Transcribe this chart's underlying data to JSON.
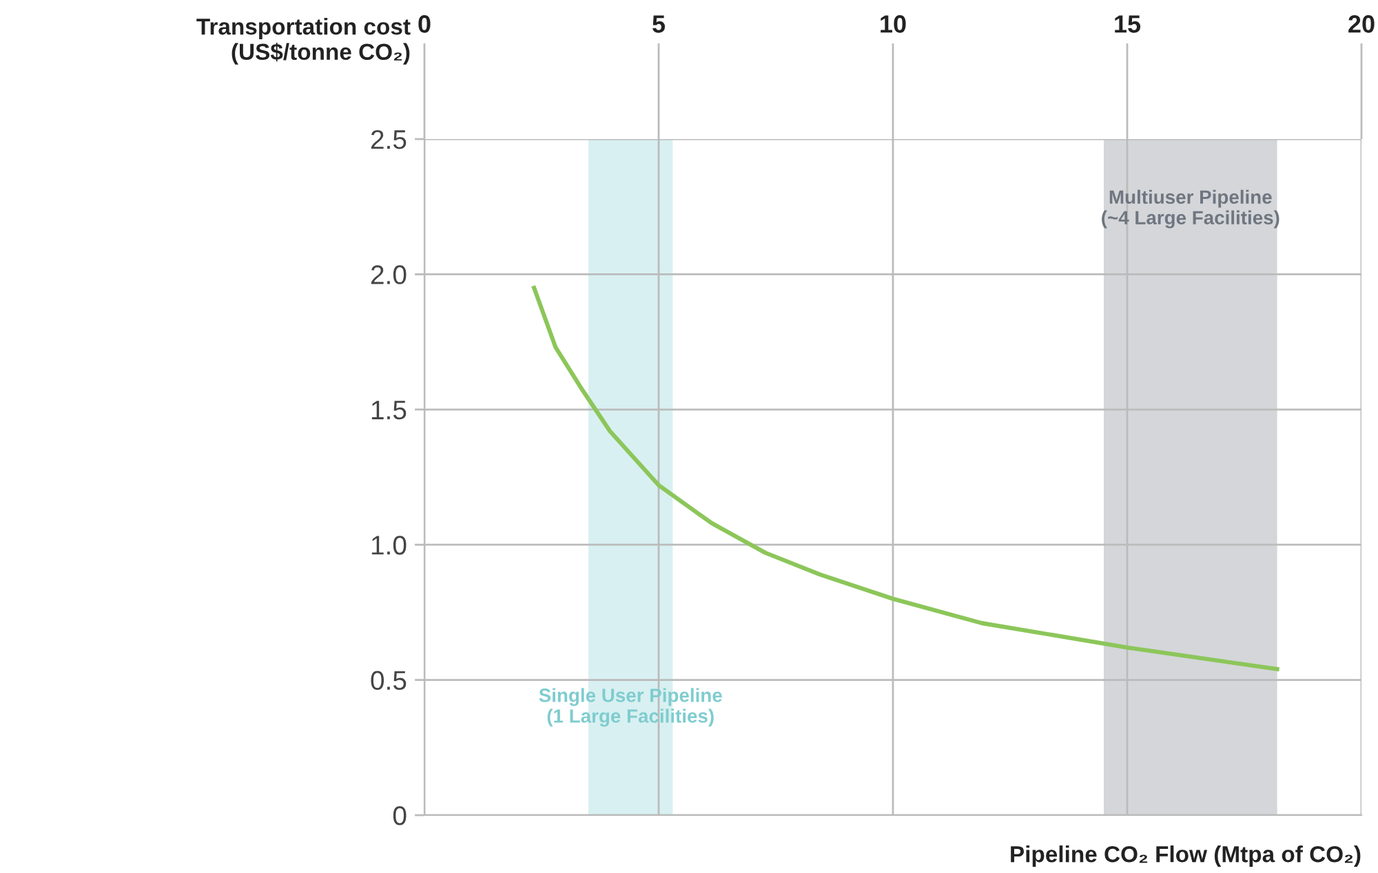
{
  "chart_data": {
    "type": "line",
    "ylabel": "Transportation cost\n(US$/tonne CO₂)",
    "xlabel": "Pipeline CO₂ Flow (Mtpa of CO₂)",
    "x": [
      2.34,
      2.8,
      3.38,
      3.96,
      5,
      6.13,
      7.28,
      8.44,
      10,
      11.9,
      15,
      18.2
    ],
    "series": [
      {
        "color": "#8cc65a",
        "values": [
          1.95,
          1.73,
          1.57,
          1.42,
          1.22,
          1.08,
          0.97,
          0.89,
          0.8,
          0.71,
          0.62,
          0.54
        ]
      }
    ],
    "xlim": [
      0,
      20
    ],
    "xticks": [
      0,
      5,
      10,
      15,
      20
    ],
    "ylim": [
      0,
      2.5
    ],
    "yticks": [
      0,
      0.5,
      {
        "value": 1,
        "label": "1.0"
      },
      1.5,
      {
        "value": 2,
        "label": "2.0"
      },
      2.5
    ],
    "grid": true,
    "marker": "none",
    "line_style": "solid",
    "bands": [
      {
        "axis": "x",
        "from": 3.5,
        "to": 5.3,
        "label": "Single User Pipeline\n(1 Large Facilities)",
        "color": "#7fcccf"
      },
      {
        "axis": "x",
        "from": 14.5,
        "to": 18.2,
        "label": "Multiuser Pipeline\n(~4 Large Facilities)",
        "color": "#6f7680"
      }
    ]
  }
}
